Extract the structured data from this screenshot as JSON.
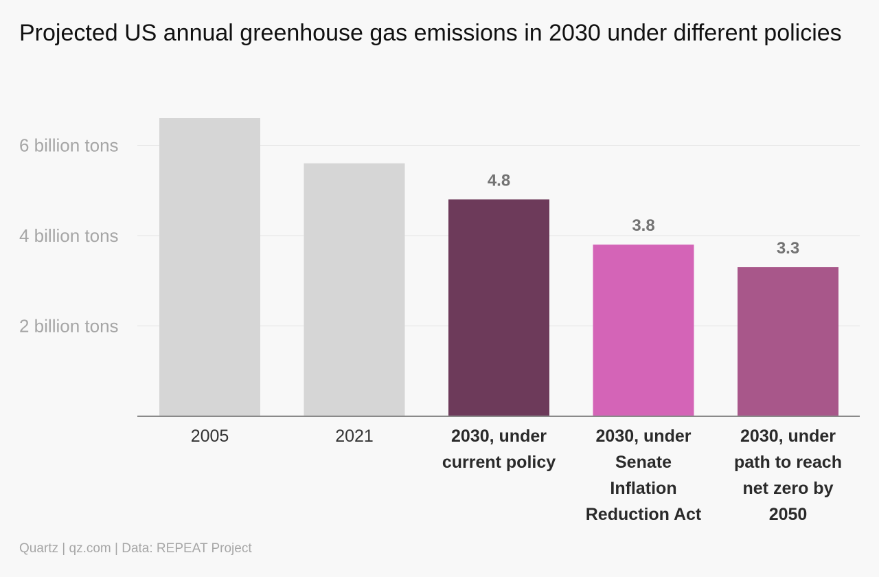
{
  "chart_data": {
    "type": "bar",
    "title": "Projected US annual greenhouse gas emissions in 2030 under different policies",
    "xlabel": "",
    "ylabel": "",
    "categories": [
      "2005",
      "2021",
      "2030, under current policy",
      "2030, under Senate Inflation Reduction Act",
      "2030, under path to reach net zero by 2050"
    ],
    "category_lines": [
      [
        "2005"
      ],
      [
        "2021"
      ],
      [
        "2030, under",
        "current policy"
      ],
      [
        "2030, under",
        "Senate",
        "Inflation",
        "Reduction Act"
      ],
      [
        "2030, under",
        "path to reach",
        "net zero by",
        "2050"
      ]
    ],
    "category_emphasis": [
      false,
      false,
      true,
      true,
      true
    ],
    "values": [
      6.6,
      5.6,
      4.8,
      3.8,
      3.3
    ],
    "value_labels": [
      "",
      "",
      "4.8",
      "3.8",
      "3.3"
    ],
    "colors": [
      "#d6d6d6",
      "#d6d6d6",
      "#6d3a5a",
      "#d464b7",
      "#a8578a"
    ],
    "ylim": [
      0,
      6.6
    ],
    "yticks": [
      {
        "value": 2,
        "label": "2 billion tons"
      },
      {
        "value": 4,
        "label": "4 billion tons"
      },
      {
        "value": 6,
        "label": "6 billion tons"
      }
    ],
    "grid": true,
    "legend": "none"
  },
  "source": "Quartz | qz.com | Data: REPEAT Project"
}
